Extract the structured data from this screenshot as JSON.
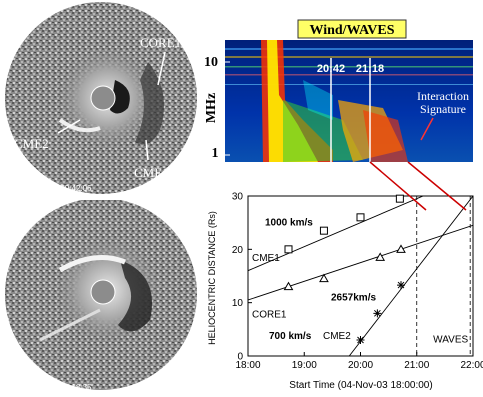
{
  "coronagraph_top": {
    "timestamp": "C3: 2003/11/04 20:42:06",
    "labels": {
      "core1": "CORE1",
      "cme2": "CME2",
      "cme1": "CME1"
    }
  },
  "coronagraph_bottom": {
    "timestamp": "C3: 2003/11/04 21:18:35"
  },
  "spectrogram": {
    "title": "Wind/WAVES",
    "ylabel": "MHz",
    "yticks": [
      "10",
      "1"
    ],
    "time_markers": [
      "20:42",
      "21:18"
    ],
    "annotation_line1": "Interaction",
    "annotation_line2": "Signature"
  },
  "colors": {
    "title_box_bg": "#ffff66",
    "marker_line": "#cc0000",
    "spectro_bg": "#001a66"
  },
  "chart_data": {
    "type": "scatter",
    "xlabel": "Start Time (04-Nov-03 18:00:00)",
    "ylabel": "HELIOCENTRIC DISTANCE (Rs)",
    "xticks": [
      "18:00",
      "19:00",
      "20:00",
      "21:00",
      "22:00"
    ],
    "yticks": [
      "0",
      "10",
      "20",
      "30"
    ],
    "xlim": [
      18.0,
      22.0
    ],
    "ylim": [
      0,
      30
    ],
    "vlines": [
      {
        "x": 21.0,
        "label": ""
      },
      {
        "x": 21.95,
        "label": "WAVES"
      }
    ],
    "series": [
      {
        "name": "CME1",
        "speed_label": "1000  km/s",
        "marker": "square",
        "x": [
          18.72,
          19.35,
          20.0,
          20.7
        ],
        "y": [
          20.0,
          23.5,
          26.0,
          29.5
        ],
        "fit": {
          "x": [
            18.0,
            22.0
          ],
          "y": [
            16.0,
            34.0
          ]
        }
      },
      {
        "name": "CORE1",
        "speed_label": "700  km/s",
        "marker": "triangle",
        "x": [
          18.72,
          19.35,
          20.35,
          20.72
        ],
        "y": [
          13.0,
          14.5,
          18.5,
          20.0
        ],
        "fit": {
          "x": [
            18.0,
            22.0
          ],
          "y": [
            10.5,
            24.5
          ]
        }
      },
      {
        "name": "CME2",
        "speed_label": "2657km/s",
        "marker": "asterisk",
        "x": [
          20.0,
          20.3,
          20.72
        ],
        "y": [
          3.0,
          8.0,
          13.3
        ],
        "fit": {
          "x": [
            19.8,
            22.0
          ],
          "y": [
            0.0,
            30.0
          ]
        }
      }
    ]
  }
}
